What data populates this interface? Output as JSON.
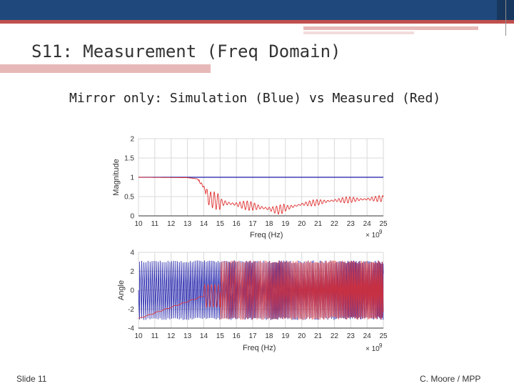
{
  "slide": {
    "title": "S11: Measurement (Freq Domain)",
    "subtitle": "Mirror only: Simulation (Blue) vs Measured (Red)",
    "footer_left": "Slide 11",
    "footer_right": "C. Moore / MPP"
  },
  "colors": {
    "header": "#1f497d",
    "accent": "#c0504d",
    "simulation": "#1a1aa8",
    "measured": "#e03030"
  },
  "chart_data": [
    {
      "type": "line",
      "ylabel": "Magnitude",
      "xlabel": "Freq (Hz)",
      "x_exponent_label": "× 10",
      "x_exponent": "9",
      "xlim": [
        10,
        25
      ],
      "ylim": [
        0,
        2
      ],
      "xticks": [
        "10",
        "11",
        "12",
        "13",
        "14",
        "15",
        "16",
        "17",
        "18",
        "19",
        "20",
        "21",
        "22",
        "23",
        "24",
        "25"
      ],
      "yticks": [
        "2",
        "1.5",
        "1",
        "0.5",
        "0"
      ],
      "grid": "vertical",
      "series": [
        {
          "name": "Simulation",
          "color": "#1a1aa8",
          "description_points": [
            [
              10,
              1.0
            ],
            [
              25,
              1.0
            ]
          ]
        },
        {
          "name": "Measured",
          "color": "#e03030",
          "envelope": [
            [
              10,
              1.0
            ],
            [
              13,
              0.99
            ],
            [
              13.6,
              0.96
            ],
            [
              14.0,
              0.75
            ],
            [
              14.3,
              0.45
            ],
            [
              15,
              0.35
            ],
            [
              17,
              0.25
            ],
            [
              18.5,
              0.15
            ],
            [
              20,
              0.3
            ],
            [
              22,
              0.4
            ],
            [
              25,
              0.45
            ]
          ]
        }
      ]
    },
    {
      "type": "line",
      "ylabel": "Angle",
      "xlabel": "Freq (Hz)",
      "x_exponent_label": "× 10",
      "x_exponent": "9",
      "xlim": [
        10,
        25
      ],
      "ylim": [
        -4,
        4
      ],
      "xticks": [
        "10",
        "11",
        "12",
        "13",
        "14",
        "15",
        "16",
        "17",
        "18",
        "19",
        "20",
        "21",
        "22",
        "23",
        "24",
        "25"
      ],
      "yticks": [
        "4",
        "2",
        "0",
        "-2",
        "-4"
      ],
      "grid": "vertical",
      "series": [
        {
          "name": "Simulation",
          "color": "#1a1aa8",
          "shape": "sawtooth between -3.14 and 3.14, increasing frequency"
        },
        {
          "name": "Measured",
          "color": "#e03030",
          "shape": "smooth from -3 at 10 GHz to 0 near 14 GHz, then wrapped oscillations"
        }
      ]
    }
  ]
}
